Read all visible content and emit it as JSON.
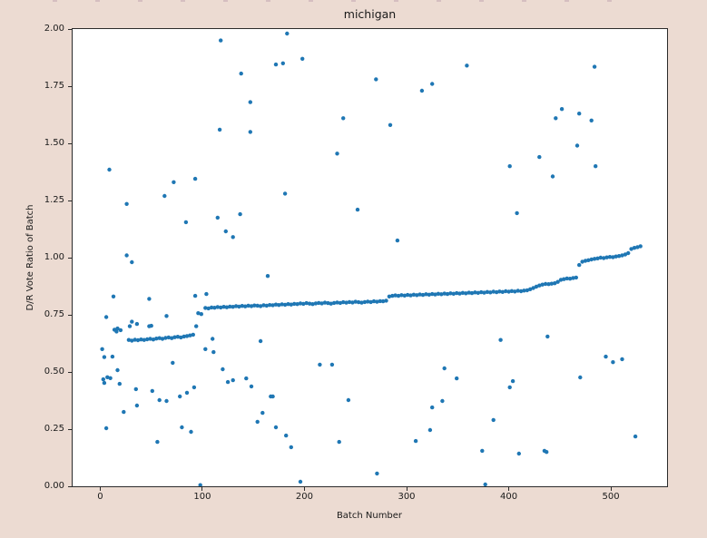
{
  "window": {
    "figure_background": "#ecdbd2",
    "axes_background": "#ffffff",
    "axes_edge_color": "#2b2b2b",
    "text_color": "#1a1a1a"
  },
  "chart_data": {
    "type": "scatter",
    "title": "michigan",
    "xlabel": "Batch Number",
    "ylabel": "D/R Vote Ratio of Batch",
    "xlim": [
      -27,
      555
    ],
    "ylim": [
      0,
      2
    ],
    "grid": false,
    "legend": "none",
    "marker_color": "#1f77b4",
    "marker_radius_px": 2.2,
    "xticks": {
      "values": [
        0,
        100,
        200,
        300,
        400,
        500
      ],
      "labels": [
        "0",
        "100",
        "200",
        "300",
        "400",
        "500"
      ]
    },
    "yticks": {
      "values": [
        0,
        0.25,
        0.5,
        0.75,
        1.0,
        1.25,
        1.5,
        1.75,
        2.0
      ],
      "labels": [
        "0.00",
        "0.25",
        "0.50",
        "0.75",
        "1.00",
        "1.25",
        "1.50",
        "1.75",
        "2.00"
      ]
    },
    "series": [
      {
        "name": "sorted-batch-trend",
        "points": [
          [
            28,
            0.64
          ],
          [
            31,
            0.637
          ],
          [
            34,
            0.641
          ],
          [
            37,
            0.639
          ],
          [
            40,
            0.642
          ],
          [
            43,
            0.64
          ],
          [
            46,
            0.643
          ],
          [
            49,
            0.645
          ],
          [
            52,
            0.642
          ],
          [
            55,
            0.646
          ],
          [
            58,
            0.648
          ],
          [
            61,
            0.645
          ],
          [
            64,
            0.649
          ],
          [
            67,
            0.651
          ],
          [
            70,
            0.648
          ],
          [
            73,
            0.652
          ],
          [
            76,
            0.654
          ],
          [
            79,
            0.651
          ],
          [
            82,
            0.655
          ],
          [
            85,
            0.657
          ],
          [
            88,
            0.66
          ],
          [
            91,
            0.663
          ],
          [
            94,
            0.7
          ],
          [
            96,
            0.757
          ],
          [
            99,
            0.753
          ],
          [
            103,
            0.78
          ],
          [
            106,
            0.778
          ],
          [
            109,
            0.782
          ],
          [
            112,
            0.781
          ],
          [
            115,
            0.784
          ],
          [
            118,
            0.782
          ],
          [
            121,
            0.785
          ],
          [
            124,
            0.783
          ],
          [
            127,
            0.786
          ],
          [
            130,
            0.785
          ],
          [
            133,
            0.788
          ],
          [
            136,
            0.786
          ],
          [
            139,
            0.789
          ],
          [
            142,
            0.787
          ],
          [
            145,
            0.79
          ],
          [
            148,
            0.788
          ],
          [
            151,
            0.791
          ],
          [
            154,
            0.79
          ],
          [
            157,
            0.788
          ],
          [
            160,
            0.792
          ],
          [
            163,
            0.79
          ],
          [
            166,
            0.793
          ],
          [
            169,
            0.792
          ],
          [
            172,
            0.795
          ],
          [
            175,
            0.793
          ],
          [
            178,
            0.796
          ],
          [
            181,
            0.794
          ],
          [
            184,
            0.797
          ],
          [
            187,
            0.795
          ],
          [
            190,
            0.798
          ],
          [
            193,
            0.797
          ],
          [
            196,
            0.8
          ],
          [
            199,
            0.798
          ],
          [
            202,
            0.801
          ],
          [
            205,
            0.799
          ],
          [
            208,
            0.797
          ],
          [
            211,
            0.8
          ],
          [
            214,
            0.802
          ],
          [
            217,
            0.8
          ],
          [
            220,
            0.803
          ],
          [
            223,
            0.801
          ],
          [
            226,
            0.799
          ],
          [
            229,
            0.802
          ],
          [
            232,
            0.804
          ],
          [
            235,
            0.802
          ],
          [
            238,
            0.805
          ],
          [
            241,
            0.803
          ],
          [
            244,
            0.806
          ],
          [
            247,
            0.804
          ],
          [
            250,
            0.807
          ],
          [
            253,
            0.805
          ],
          [
            256,
            0.803
          ],
          [
            259,
            0.806
          ],
          [
            262,
            0.808
          ],
          [
            265,
            0.806
          ],
          [
            268,
            0.809
          ],
          [
            271,
            0.807
          ],
          [
            274,
            0.81
          ],
          [
            277,
            0.809
          ],
          [
            280,
            0.812
          ],
          [
            283,
            0.83
          ],
          [
            286,
            0.833
          ],
          [
            289,
            0.835
          ],
          [
            292,
            0.833
          ],
          [
            295,
            0.836
          ],
          [
            298,
            0.834
          ],
          [
            301,
            0.837
          ],
          [
            304,
            0.835
          ],
          [
            307,
            0.838
          ],
          [
            310,
            0.836
          ],
          [
            313,
            0.839
          ],
          [
            316,
            0.837
          ],
          [
            319,
            0.84
          ],
          [
            322,
            0.838
          ],
          [
            325,
            0.841
          ],
          [
            328,
            0.839
          ],
          [
            331,
            0.842
          ],
          [
            334,
            0.84
          ],
          [
            337,
            0.843
          ],
          [
            340,
            0.841
          ],
          [
            343,
            0.844
          ],
          [
            346,
            0.842
          ],
          [
            349,
            0.845
          ],
          [
            352,
            0.843
          ],
          [
            355,
            0.846
          ],
          [
            358,
            0.844
          ],
          [
            361,
            0.847
          ],
          [
            364,
            0.845
          ],
          [
            367,
            0.848
          ],
          [
            370,
            0.846
          ],
          [
            373,
            0.849
          ],
          [
            376,
            0.847
          ],
          [
            379,
            0.85
          ],
          [
            382,
            0.848
          ],
          [
            385,
            0.851
          ],
          [
            388,
            0.849
          ],
          [
            391,
            0.852
          ],
          [
            394,
            0.85
          ],
          [
            397,
            0.853
          ],
          [
            400,
            0.851
          ],
          [
            403,
            0.854
          ],
          [
            406,
            0.852
          ],
          [
            409,
            0.855
          ],
          [
            412,
            0.853
          ],
          [
            415,
            0.856
          ],
          [
            418,
            0.857
          ],
          [
            421,
            0.862
          ],
          [
            424,
            0.867
          ],
          [
            427,
            0.873
          ],
          [
            430,
            0.878
          ],
          [
            433,
            0.882
          ],
          [
            436,
            0.885
          ],
          [
            439,
            0.884
          ],
          [
            442,
            0.886
          ],
          [
            445,
            0.888
          ],
          [
            448,
            0.894
          ],
          [
            451,
            0.903
          ],
          [
            454,
            0.906
          ],
          [
            457,
            0.909
          ],
          [
            460,
            0.908
          ],
          [
            463,
            0.911
          ],
          [
            466,
            0.913
          ],
          [
            469,
            0.968
          ],
          [
            472,
            0.982
          ],
          [
            475,
            0.986
          ],
          [
            478,
            0.989
          ],
          [
            481,
            0.992
          ],
          [
            484,
            0.995
          ],
          [
            487,
            0.997
          ],
          [
            490,
            1.0
          ],
          [
            493,
            0.998
          ],
          [
            496,
            1.001
          ],
          [
            499,
            1.003
          ],
          [
            502,
            1.002
          ],
          [
            505,
            1.005
          ],
          [
            508,
            1.007
          ],
          [
            511,
            1.01
          ],
          [
            514,
            1.014
          ],
          [
            517,
            1.02
          ],
          [
            520,
            1.038
          ],
          [
            523,
            1.043
          ],
          [
            526,
            1.046
          ],
          [
            529,
            1.05
          ]
        ]
      },
      {
        "name": "scattered-batches",
        "points": [
          [
            9,
            1.385
          ],
          [
            26,
            1.235
          ],
          [
            26,
            1.01
          ],
          [
            31,
            0.98
          ],
          [
            63,
            1.27
          ],
          [
            72,
            1.33
          ],
          [
            84,
            1.155
          ],
          [
            93,
            1.345
          ],
          [
            115,
            1.175
          ],
          [
            117,
            1.56
          ],
          [
            118,
            1.95
          ],
          [
            123,
            1.115
          ],
          [
            130,
            1.09
          ],
          [
            137,
            1.19
          ],
          [
            138,
            1.805
          ],
          [
            147,
            1.68
          ],
          [
            147,
            1.55
          ],
          [
            164,
            0.92
          ],
          [
            172,
            1.845
          ],
          [
            179,
            1.85
          ],
          [
            181,
            1.28
          ],
          [
            183,
            1.98
          ],
          [
            198,
            1.87
          ],
          [
            232,
            1.455
          ],
          [
            238,
            1.61
          ],
          [
            252,
            1.21
          ],
          [
            270,
            1.78
          ],
          [
            284,
            1.58
          ],
          [
            291,
            1.075
          ],
          [
            315,
            1.73
          ],
          [
            325,
            1.76
          ],
          [
            359,
            1.84
          ],
          [
            401,
            1.4
          ],
          [
            408,
            1.195
          ],
          [
            430,
            1.44
          ],
          [
            443,
            1.355
          ],
          [
            446,
            1.61
          ],
          [
            452,
            1.65
          ],
          [
            467,
            1.49
          ],
          [
            469,
            1.63
          ],
          [
            481,
            1.6
          ],
          [
            484,
            1.835
          ],
          [
            485,
            1.4
          ],
          [
            13,
            0.83
          ],
          [
            48,
            0.82
          ],
          [
            93,
            0.833
          ],
          [
            104,
            0.841
          ],
          [
            2,
            0.6
          ],
          [
            3,
            0.468
          ],
          [
            4,
            0.565
          ],
          [
            4,
            0.452
          ],
          [
            6,
            0.74
          ],
          [
            6,
            0.254
          ],
          [
            7,
            0.477
          ],
          [
            10,
            0.473
          ],
          [
            12,
            0.567
          ],
          [
            14,
            0.685
          ],
          [
            16,
            0.677
          ],
          [
            17,
            0.69
          ],
          [
            17,
            0.508
          ],
          [
            19,
            0.448
          ],
          [
            20,
            0.683
          ],
          [
            23,
            0.325
          ],
          [
            29,
            0.7
          ],
          [
            31,
            0.72
          ],
          [
            35,
            0.425
          ],
          [
            36,
            0.71
          ],
          [
            36,
            0.353
          ],
          [
            48,
            0.7
          ],
          [
            50,
            0.702
          ],
          [
            51,
            0.417
          ],
          [
            56,
            0.194
          ],
          [
            58,
            0.377
          ],
          [
            65,
            0.745
          ],
          [
            65,
            0.373
          ],
          [
            71,
            0.54
          ],
          [
            78,
            0.393
          ],
          [
            80,
            0.258
          ],
          [
            85,
            0.409
          ],
          [
            89,
            0.238
          ],
          [
            92,
            0.433
          ],
          [
            98,
            0.005
          ],
          [
            103,
            0.6
          ],
          [
            110,
            0.645
          ],
          [
            111,
            0.587
          ],
          [
            120,
            0.512
          ],
          [
            125,
            0.456
          ],
          [
            130,
            0.464
          ],
          [
            143,
            0.472
          ],
          [
            148,
            0.437
          ],
          [
            154,
            0.282
          ],
          [
            157,
            0.635
          ],
          [
            159,
            0.321
          ],
          [
            167,
            0.393
          ],
          [
            169,
            0.393
          ],
          [
            172,
            0.258
          ],
          [
            182,
            0.222
          ],
          [
            187,
            0.171
          ],
          [
            196,
            0.02
          ],
          [
            215,
            0.532
          ],
          [
            227,
            0.532
          ],
          [
            234,
            0.194
          ],
          [
            243,
            0.377
          ],
          [
            271,
            0.056
          ],
          [
            309,
            0.198
          ],
          [
            323,
            0.246
          ],
          [
            325,
            0.345
          ],
          [
            335,
            0.373
          ],
          [
            337,
            0.516
          ],
          [
            349,
            0.472
          ],
          [
            374,
            0.155
          ],
          [
            377,
            0.008
          ],
          [
            385,
            0.29
          ],
          [
            392,
            0.64
          ],
          [
            401,
            0.433
          ],
          [
            404,
            0.46
          ],
          [
            410,
            0.143
          ],
          [
            435,
            0.155
          ],
          [
            437,
            0.15
          ],
          [
            438,
            0.655
          ],
          [
            470,
            0.476
          ],
          [
            495,
            0.567
          ],
          [
            502,
            0.543
          ],
          [
            511,
            0.556
          ],
          [
            524,
            0.218
          ]
        ]
      }
    ]
  }
}
